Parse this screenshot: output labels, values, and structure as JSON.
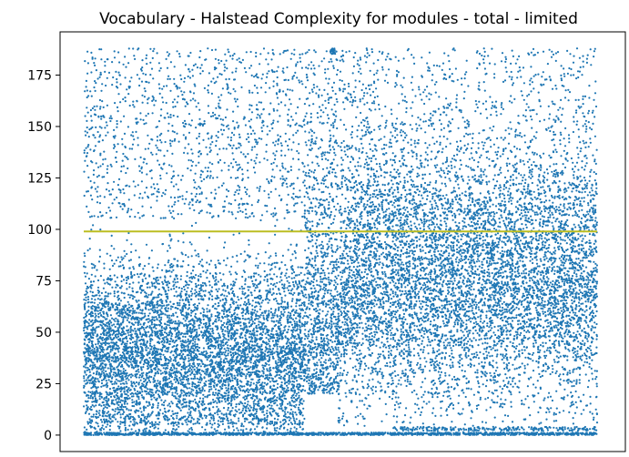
{
  "chart_data": {
    "type": "scatter",
    "title": "Vocabulary - Halstead Complexity for modules - total - limited",
    "xlabel": "",
    "ylabel": "",
    "x_axis_ticks_shown": false,
    "ylim": [
      -8,
      196
    ],
    "y_ticks": [
      "0",
      "25",
      "50",
      "75",
      "100",
      "125",
      "150",
      "175"
    ],
    "grid": false,
    "point_color": "#1f77b4",
    "point_count_approx": 18000,
    "x_range": [
      0,
      10000
    ],
    "reference_line": {
      "y": 99,
      "color": "#bcbd22"
    },
    "density_profile": [
      {
        "x_from": 0,
        "x_to": 5000,
        "typical_low": 10,
        "typical_high": 60,
        "sparse_upper_to": 188
      },
      {
        "x_from": 5000,
        "x_to": 10000,
        "typical_low": 40,
        "typical_high": 115,
        "sparse_upper_to": 188
      }
    ],
    "notable_bands": [
      {
        "y": 0,
        "note": "dense floor along the full x range"
      },
      {
        "y": 3,
        "x_from": 6000,
        "x_to": 10000
      },
      {
        "y": 187,
        "x_from": 4800,
        "x_to": 4900
      }
    ]
  }
}
